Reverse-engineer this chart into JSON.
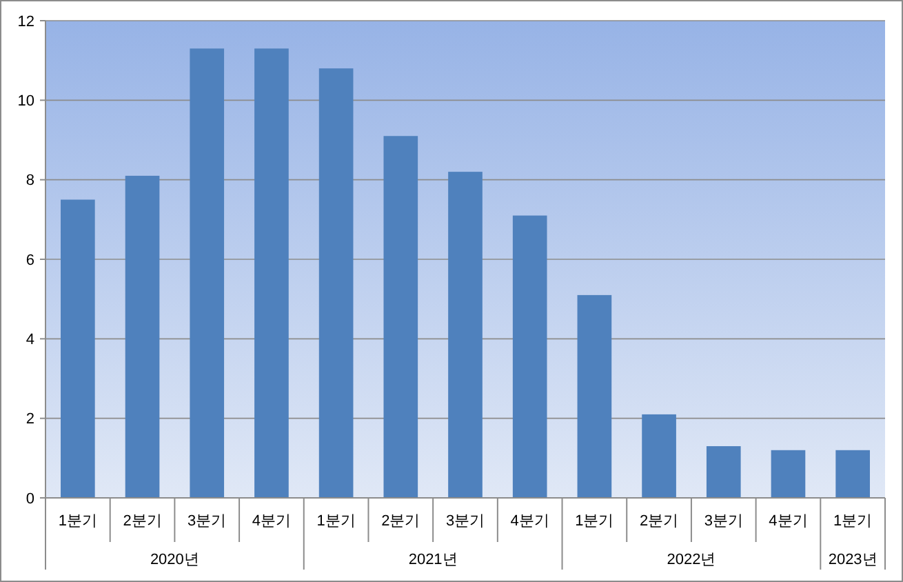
{
  "chart_data": {
    "type": "bar",
    "categories": [
      "1분기",
      "2분기",
      "3분기",
      "4분기",
      "1분기",
      "2분기",
      "3분기",
      "4분기",
      "1분기",
      "2분기",
      "3분기",
      "4분기",
      "1분기"
    ],
    "values": [
      7.5,
      8.1,
      11.3,
      11.3,
      10.8,
      9.1,
      8.2,
      7.1,
      5.1,
      2.1,
      1.3,
      1.2,
      1.2
    ],
    "color": "#4f81bd",
    "ylim": [
      0,
      12
    ],
    "yticks": [
      0,
      2,
      4,
      6,
      8,
      10,
      12
    ],
    "grid": "y",
    "annotations": [
      "2020년",
      "2021년",
      "2022년",
      "2023년"
    ]
  }
}
